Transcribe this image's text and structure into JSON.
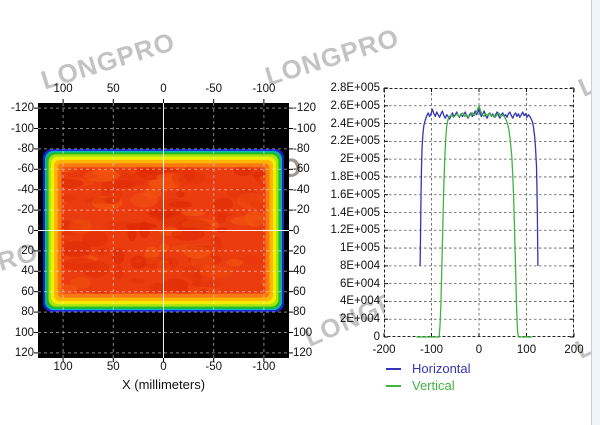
{
  "watermark": {
    "text": "LONGPRO",
    "color": "#9e9e9e"
  },
  "left_chart_xlabel": "X (millimeters)",
  "chart_data": [
    {
      "type": "heatmap",
      "title": "",
      "xlabel": "X (millimeters)",
      "ylabel": "",
      "xlim": [
        125,
        -125
      ],
      "ylim": [
        -125,
        125
      ],
      "x_axis_reversed": true,
      "x_tick_values": [
        100,
        50,
        0,
        -50,
        -100
      ],
      "x_tick_labels": [
        "100",
        "50",
        "0",
        "-50",
        "-100"
      ],
      "y_tick_values": [
        -120,
        -100,
        -80,
        -60,
        -40,
        -20,
        0,
        20,
        40,
        60,
        80,
        100,
        120
      ],
      "y_tick_labels": [
        "-120",
        "-100",
        "-80",
        "-60",
        "-40",
        "-20",
        "0",
        "20",
        "40",
        "60",
        "80",
        "100",
        "120"
      ],
      "grid": "dashed white, solid at 0",
      "background": "#000000",
      "beam": {
        "shape": "flat-top rectangle",
        "x_extent_mm": [
          -120,
          120
        ],
        "y_extent_mm": [
          -80,
          80
        ],
        "colormap": "jet",
        "colormap_bands_outer_to_inner": [
          "#2020cc",
          "#00b8b8",
          "#22bc22",
          "#a6e414",
          "#f2ee00",
          "#ffb400",
          "#f97814",
          "#ea3c0e"
        ],
        "hot_spot_colors": [
          "#dc2804",
          "#f35411",
          "#e23109"
        ]
      }
    },
    {
      "type": "line",
      "title": "",
      "xlabel": "",
      "ylabel": "",
      "xlim": [
        -200,
        200
      ],
      "ylim": [
        0,
        280000
      ],
      "x_tick_values": [
        -200,
        -100,
        0,
        100,
        200
      ],
      "x_tick_labels": [
        "-200",
        "-100",
        "0",
        "100",
        "200"
      ],
      "y_tick_values": [
        280000,
        260000,
        240000,
        220000,
        200000,
        180000,
        160000,
        140000,
        120000,
        100000,
        80000,
        60000,
        40000,
        20000,
        0
      ],
      "y_tick_labels": [
        "2.8E+005",
        "2.6E+005",
        "2.4E+005",
        "2.2E+005",
        "2E+005",
        "1.8E+005",
        "1.6E+005",
        "1.4E+005",
        "1.2E+005",
        "1E+005",
        "8E+004",
        "6E+004",
        "4E+004",
        "2E+004",
        "0"
      ],
      "x_grid_values": [
        -100,
        0,
        100
      ],
      "grid": "dashed",
      "legend_position": "below-left",
      "series": [
        {
          "name": "Horizontal",
          "color": "#3434b4",
          "points": [
            [
              -124,
              80000
            ],
            [
              -123,
              120000
            ],
            [
              -122,
              158000
            ],
            [
              -121,
              190000
            ],
            [
              -120,
              212000
            ],
            [
              -118,
              228000
            ],
            [
              -116,
              238000
            ],
            [
              -113,
              244000
            ],
            [
              -110,
              249000
            ],
            [
              -107,
              252000
            ],
            [
              -104,
              248000
            ],
            [
              -101,
              251000
            ],
            [
              -98,
              256000
            ],
            [
              -95,
              251000
            ],
            [
              -92,
              248000
            ],
            [
              -89,
              253000
            ],
            [
              -86,
              250000
            ],
            [
              -83,
              247000
            ],
            [
              -80,
              251000
            ],
            [
              -77,
              254000
            ],
            [
              -74,
              249000
            ],
            [
              -71,
              246000
            ],
            [
              -68,
              250000
            ],
            [
              -65,
              248000
            ],
            [
              -62,
              245000
            ],
            [
              -59,
              249000
            ],
            [
              -56,
              252000
            ],
            [
              -53,
              248000
            ],
            [
              -50,
              250000
            ],
            [
              -47,
              253000
            ],
            [
              -44,
              249000
            ],
            [
              -41,
              247000
            ],
            [
              -38,
              251000
            ],
            [
              -35,
              248000
            ],
            [
              -32,
              250000
            ],
            [
              -29,
              253000
            ],
            [
              -26,
              249000
            ],
            [
              -23,
              246000
            ],
            [
              -20,
              250000
            ],
            [
              -17,
              252000
            ],
            [
              -14,
              248000
            ],
            [
              -11,
              251000
            ],
            [
              -8,
              254000
            ],
            [
              -5,
              250000
            ],
            [
              -2,
              253000
            ],
            [
              0,
              257000
            ],
            [
              2,
              252000
            ],
            [
              5,
              248000
            ],
            [
              8,
              251000
            ],
            [
              11,
              254000
            ],
            [
              14,
              249000
            ],
            [
              17,
              246000
            ],
            [
              20,
              250000
            ],
            [
              23,
              252000
            ],
            [
              26,
              248000
            ],
            [
              29,
              251000
            ],
            [
              32,
              247000
            ],
            [
              35,
              250000
            ],
            [
              38,
              253000
            ],
            [
              41,
              249000
            ],
            [
              44,
              246000
            ],
            [
              47,
              250000
            ],
            [
              50,
              252000
            ],
            [
              53,
              248000
            ],
            [
              56,
              250000
            ],
            [
              59,
              247000
            ],
            [
              62,
              251000
            ],
            [
              65,
              253000
            ],
            [
              68,
              249000
            ],
            [
              71,
              246000
            ],
            [
              74,
              250000
            ],
            [
              77,
              252000
            ],
            [
              80,
              248000
            ],
            [
              83,
              251000
            ],
            [
              86,
              247000
            ],
            [
              89,
              250000
            ],
            [
              92,
              253000
            ],
            [
              95,
              249000
            ],
            [
              98,
              251000
            ],
            [
              101,
              247000
            ],
            [
              104,
              250000
            ],
            [
              107,
              248000
            ],
            [
              110,
              245000
            ],
            [
              113,
              241000
            ],
            [
              115,
              235000
            ],
            [
              117,
              226000
            ],
            [
              119,
              213000
            ],
            [
              121,
              192000
            ],
            [
              122,
              170000
            ],
            [
              123,
              135000
            ],
            [
              124,
              80000
            ]
          ]
        },
        {
          "name": "Vertical",
          "color": "#40b440",
          "points": [
            [
              -132,
              0
            ],
            [
              -84,
              0
            ],
            [
              -82,
              12000
            ],
            [
              -80,
              40000
            ],
            [
              -78,
              82000
            ],
            [
              -76,
              128000
            ],
            [
              -74,
              170000
            ],
            [
              -72,
              202000
            ],
            [
              -70,
              224000
            ],
            [
              -68,
              237000
            ],
            [
              -65,
              245000
            ],
            [
              -62,
              248000
            ],
            [
              -58,
              250000
            ],
            [
              -54,
              247000
            ],
            [
              -50,
              249000
            ],
            [
              -46,
              251000
            ],
            [
              -42,
              248000
            ],
            [
              -38,
              250000
            ],
            [
              -34,
              252000
            ],
            [
              -30,
              248000
            ],
            [
              -26,
              250000
            ],
            [
              -22,
              247000
            ],
            [
              -18,
              250000
            ],
            [
              -14,
              252000
            ],
            [
              -10,
              249000
            ],
            [
              -6,
              252000
            ],
            [
              -3,
              256000
            ],
            [
              0,
              260000
            ],
            [
              3,
              255000
            ],
            [
              6,
              251000
            ],
            [
              10,
              248000
            ],
            [
              14,
              251000
            ],
            [
              18,
              249000
            ],
            [
              22,
              252000
            ],
            [
              26,
              248000
            ],
            [
              30,
              250000
            ],
            [
              34,
              247000
            ],
            [
              38,
              250000
            ],
            [
              42,
              252000
            ],
            [
              46,
              248000
            ],
            [
              50,
              250000
            ],
            [
              54,
              247000
            ],
            [
              57,
              244000
            ],
            [
              60,
              240000
            ],
            [
              63,
              233000
            ],
            [
              66,
              221000
            ],
            [
              69,
              203000
            ],
            [
              71,
              183000
            ],
            [
              73,
              155000
            ],
            [
              75,
              118000
            ],
            [
              77,
              76000
            ],
            [
              79,
              36000
            ],
            [
              81,
              8000
            ],
            [
              83,
              0
            ],
            [
              112,
              0
            ]
          ]
        }
      ]
    }
  ]
}
